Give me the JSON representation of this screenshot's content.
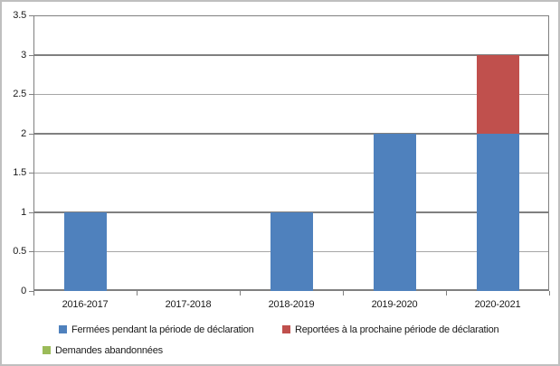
{
  "chart_data": {
    "type": "bar",
    "stacked": true,
    "title": "",
    "xlabel": "",
    "ylabel": "",
    "categories": [
      "2016-2017",
      "2017-2018",
      "2018-2019",
      "2019-2020",
      "2020-2021"
    ],
    "series": [
      {
        "name": "Fermées pendant la période de déclaration",
        "color": "#4F81BD",
        "values": [
          1,
          0,
          1,
          2,
          2
        ]
      },
      {
        "name": "Reportées à la prochaine période de déclaration",
        "color": "#C0504D",
        "values": [
          0,
          0,
          0,
          0,
          1
        ]
      },
      {
        "name": "Demandes abandonnées",
        "color": "#9BBB59",
        "values": [
          0,
          0,
          0,
          0,
          0
        ]
      }
    ],
    "ylim": [
      0,
      3.5
    ],
    "ytick_step": 0.5,
    "yticks": [
      "3.5",
      "3",
      "2.5",
      "2",
      "1.5",
      "1",
      "0.5",
      "0"
    ],
    "grid": true,
    "legend_position": "bottom"
  }
}
